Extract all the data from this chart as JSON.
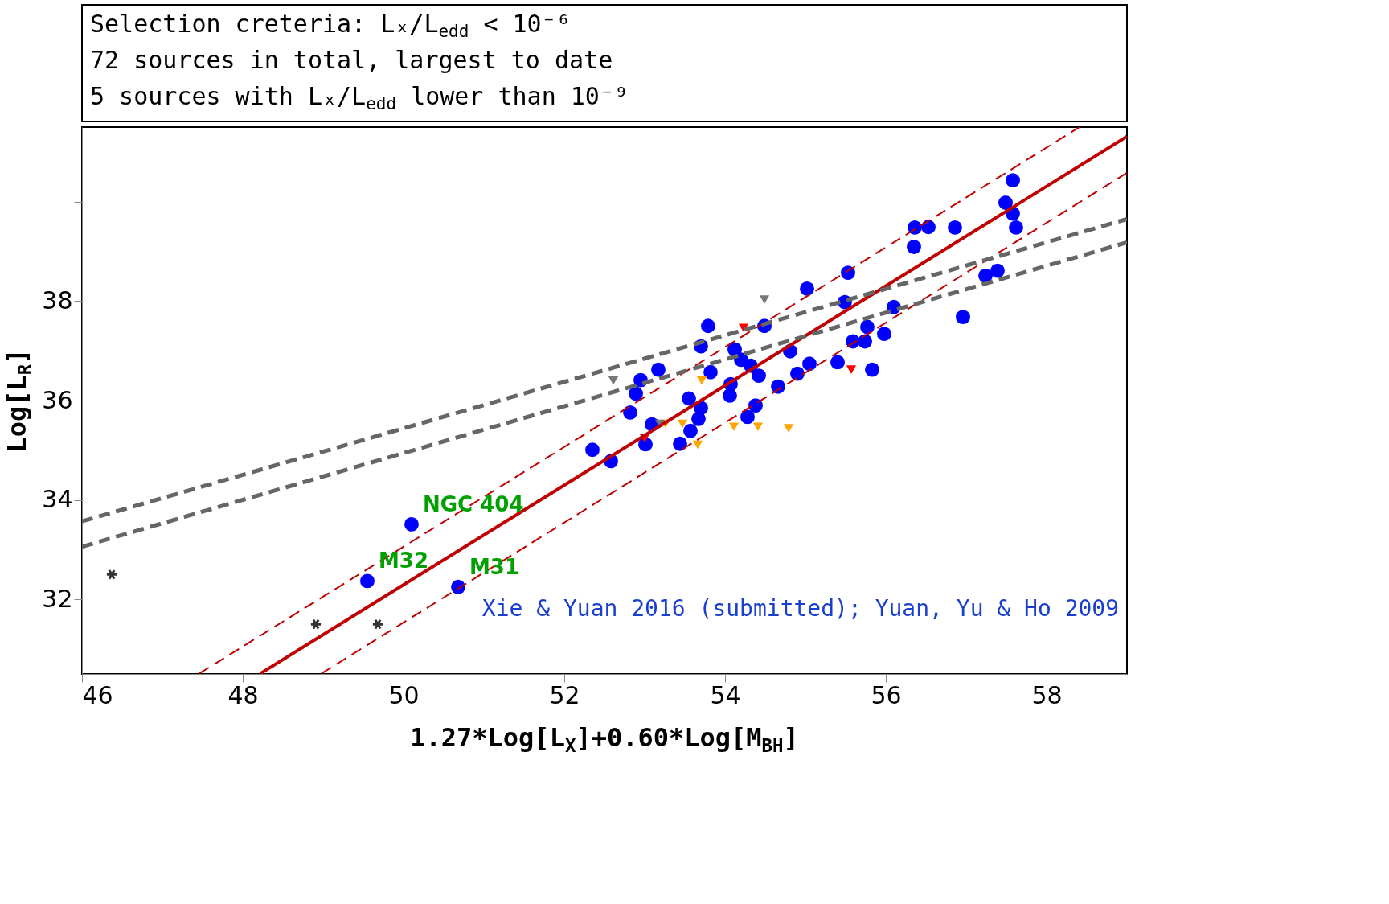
{
  "chart_data": {
    "type": "scatter",
    "xlabel": "1.27*Log[L$_{X}$]+0.60*Log[M$_{BH}$]",
    "ylabel": "Log[L$_{R}$]",
    "xlim": [
      46,
      59
    ],
    "ylim": [
      30.5,
      41.5
    ],
    "xticks": [
      46,
      48,
      50,
      52,
      54,
      56,
      58
    ],
    "yticks": [
      32,
      34,
      36,
      38,
      {
        "value": 40,
        "label": null
      }
    ],
    "grid": false,
    "annotations": [
      "Selection creteria: Lₓ/L$_{edd}$ < 10⁻⁶",
      "72 sources in total, largest to date",
      "5 sources with Lₓ/L$_{edd}$ lower than 10⁻⁹",
      "Xie & Yuan 2016 (submitted); Yuan, Yu & Ho 2009",
      {
        "text": "NGC 404",
        "x": 50.1,
        "y": 33.51
      },
      {
        "text": "M32",
        "x": 49.55,
        "y": 32.37
      },
      {
        "text": "M31",
        "x": 50.68,
        "y": 32.25
      }
    ],
    "series": [
      {
        "marker": "circle",
        "color": "#0000ff",
        "x": [
          57.58,
          57.49,
          57.58,
          57.62,
          56.36,
          56.53,
          56.86,
          56.35,
          55.53,
          55.02,
          57.39,
          57.24,
          56.1,
          56.96,
          55.49,
          53.79,
          53.7,
          54.49,
          55.77,
          55.98,
          55.59,
          55.74,
          54.12,
          54.2,
          54.81,
          55.4,
          55.05,
          54.9,
          55.83,
          53.17,
          52.95,
          53.82,
          54.32,
          54.42,
          54.07,
          54.66,
          52.89,
          54.06,
          53.55,
          54.38,
          53.7,
          52.82,
          54.28,
          53.67,
          53.09,
          53.57,
          53.01,
          52.35,
          52.58,
          53.44,
          50.1,
          49.55,
          50.68
        ],
        "values": [
          40.43,
          39.98,
          39.76,
          39.48,
          39.48,
          39.49,
          39.48,
          39.09,
          38.57,
          38.25,
          38.61,
          38.51,
          37.88,
          37.68,
          37.98,
          37.5,
          37.09,
          37.5,
          37.48,
          37.34,
          37.19,
          37.19,
          37.03,
          36.82,
          36.99,
          36.77,
          36.74,
          36.54,
          36.62,
          36.62,
          36.41,
          36.57,
          36.7,
          36.5,
          36.33,
          36.28,
          36.14,
          36.1,
          36.04,
          35.9,
          35.85,
          35.76,
          35.67,
          35.63,
          35.52,
          35.39,
          35.12,
          35.01,
          34.78,
          35.13,
          33.51,
          32.37,
          32.25
        ]
      },
      {
        "type": "scatter",
        "marker": "cross",
        "color": "#333333",
        "x": [
          46.37,
          48.91,
          49.68
        ],
        "values": [
          32.5,
          31.5,
          31.5
        ]
      },
      {
        "type": "scatter",
        "marker": "triangle",
        "color": "#ffa500",
        "x": [
          53.71,
          53.47,
          53.26,
          53.66,
          54.11,
          54.41,
          54.79
        ],
        "values": [
          36.4,
          35.53,
          35.53,
          35.11,
          35.47,
          35.47,
          35.44
        ]
      },
      {
        "type": "scatter",
        "marker": "triangle",
        "color": "#777777",
        "x": [
          54.49,
          52.61,
          53.19
        ],
        "values": [
          38.03,
          36.4,
          35.53
        ]
      },
      {
        "type": "scatter",
        "marker": "triangle",
        "color": "#ff0000",
        "x": [
          54.23,
          55.57,
          53.0
        ],
        "values": [
          37.46,
          36.62,
          35.24
        ]
      },
      {
        "type": "line",
        "line_style": "solid",
        "color": "#c00000",
        "x": [
          48.22,
          59
        ],
        "values": [
          30.51,
          41.31
        ]
      },
      {
        "type": "line",
        "line_style": "dashed",
        "color": "#c00000",
        "x": [
          47.46,
          58.41
        ],
        "values": [
          30.51,
          41.5
        ]
      },
      {
        "type": "line",
        "line_style": "dashed",
        "color": "#c00000",
        "x": [
          48.98,
          59
        ],
        "values": [
          30.51,
          40.58
        ]
      },
      {
        "type": "line",
        "line_style": "dashed",
        "color": "#666666",
        "x": [
          46,
          59
        ],
        "values": [
          33.57,
          39.65
        ]
      },
      {
        "type": "line",
        "line_style": "dashed",
        "color": "#666666",
        "x": [
          46,
          59
        ],
        "values": [
          33.06,
          39.18
        ]
      }
    ]
  }
}
